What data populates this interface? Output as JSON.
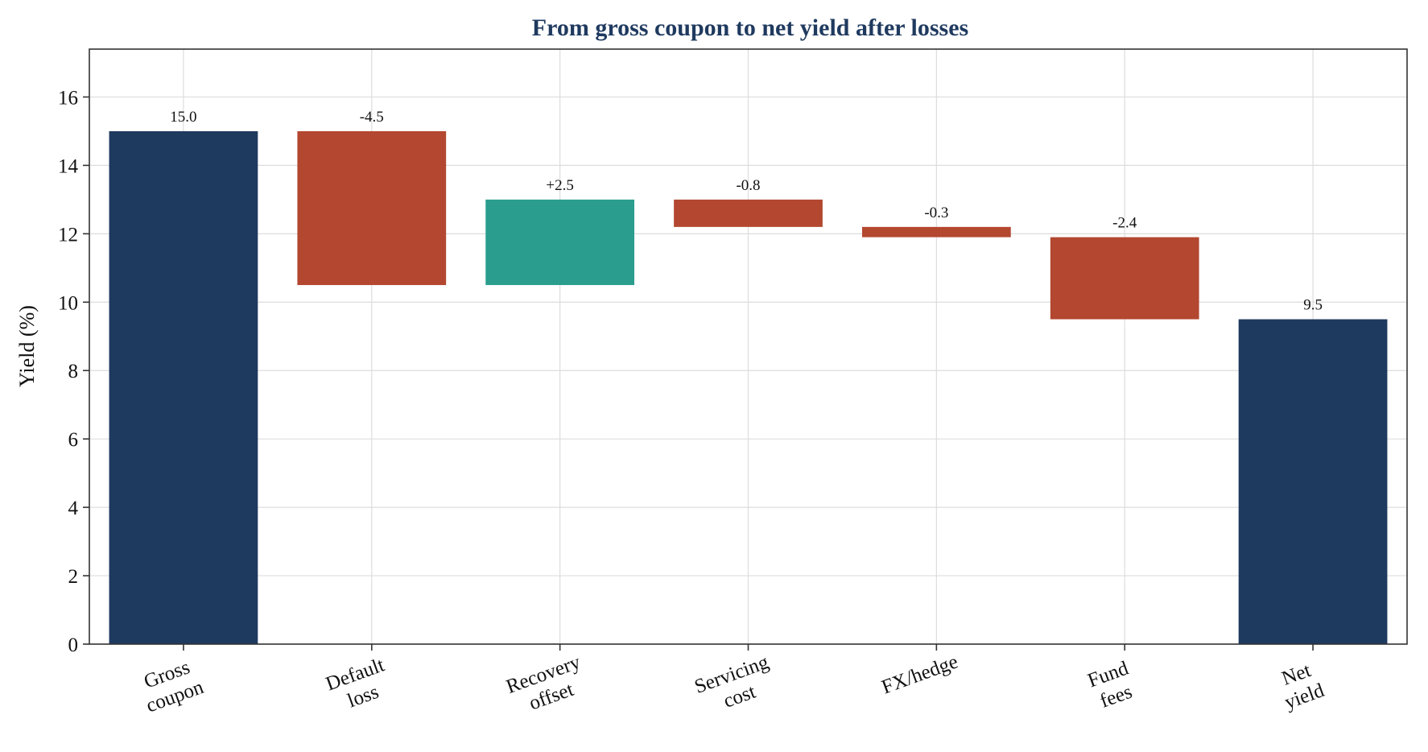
{
  "chart_data": {
    "type": "bar",
    "subtype": "waterfall",
    "title": "From gross coupon to net yield after losses",
    "ylabel": "Yield (%)",
    "xlabel": "",
    "ylim": [
      0,
      17.4
    ],
    "yticks": [
      0,
      2,
      4,
      6,
      8,
      10,
      12,
      14,
      16
    ],
    "grid": true,
    "categories": [
      [
        "Gross",
        "coupon"
      ],
      [
        "Default",
        "loss"
      ],
      [
        "Recovery",
        "offset"
      ],
      [
        "Servicing",
        "cost"
      ],
      [
        "FX/hedge"
      ],
      [
        "Fund",
        "fees"
      ],
      [
        "Net",
        "yield"
      ]
    ],
    "values": [
      15.0,
      -4.5,
      2.5,
      -0.8,
      -0.3,
      -2.4,
      9.5
    ],
    "kinds": [
      "total",
      "delta",
      "delta",
      "delta",
      "delta",
      "delta",
      "total"
    ],
    "data_labels": [
      "15.0",
      "-4.5",
      "+2.5",
      "-0.8",
      "-0.3",
      "-2.4",
      "9.5"
    ],
    "colors": {
      "total": "#1f3a5f",
      "decrease": "#b34730",
      "increase": "#2a9d8f"
    }
  }
}
